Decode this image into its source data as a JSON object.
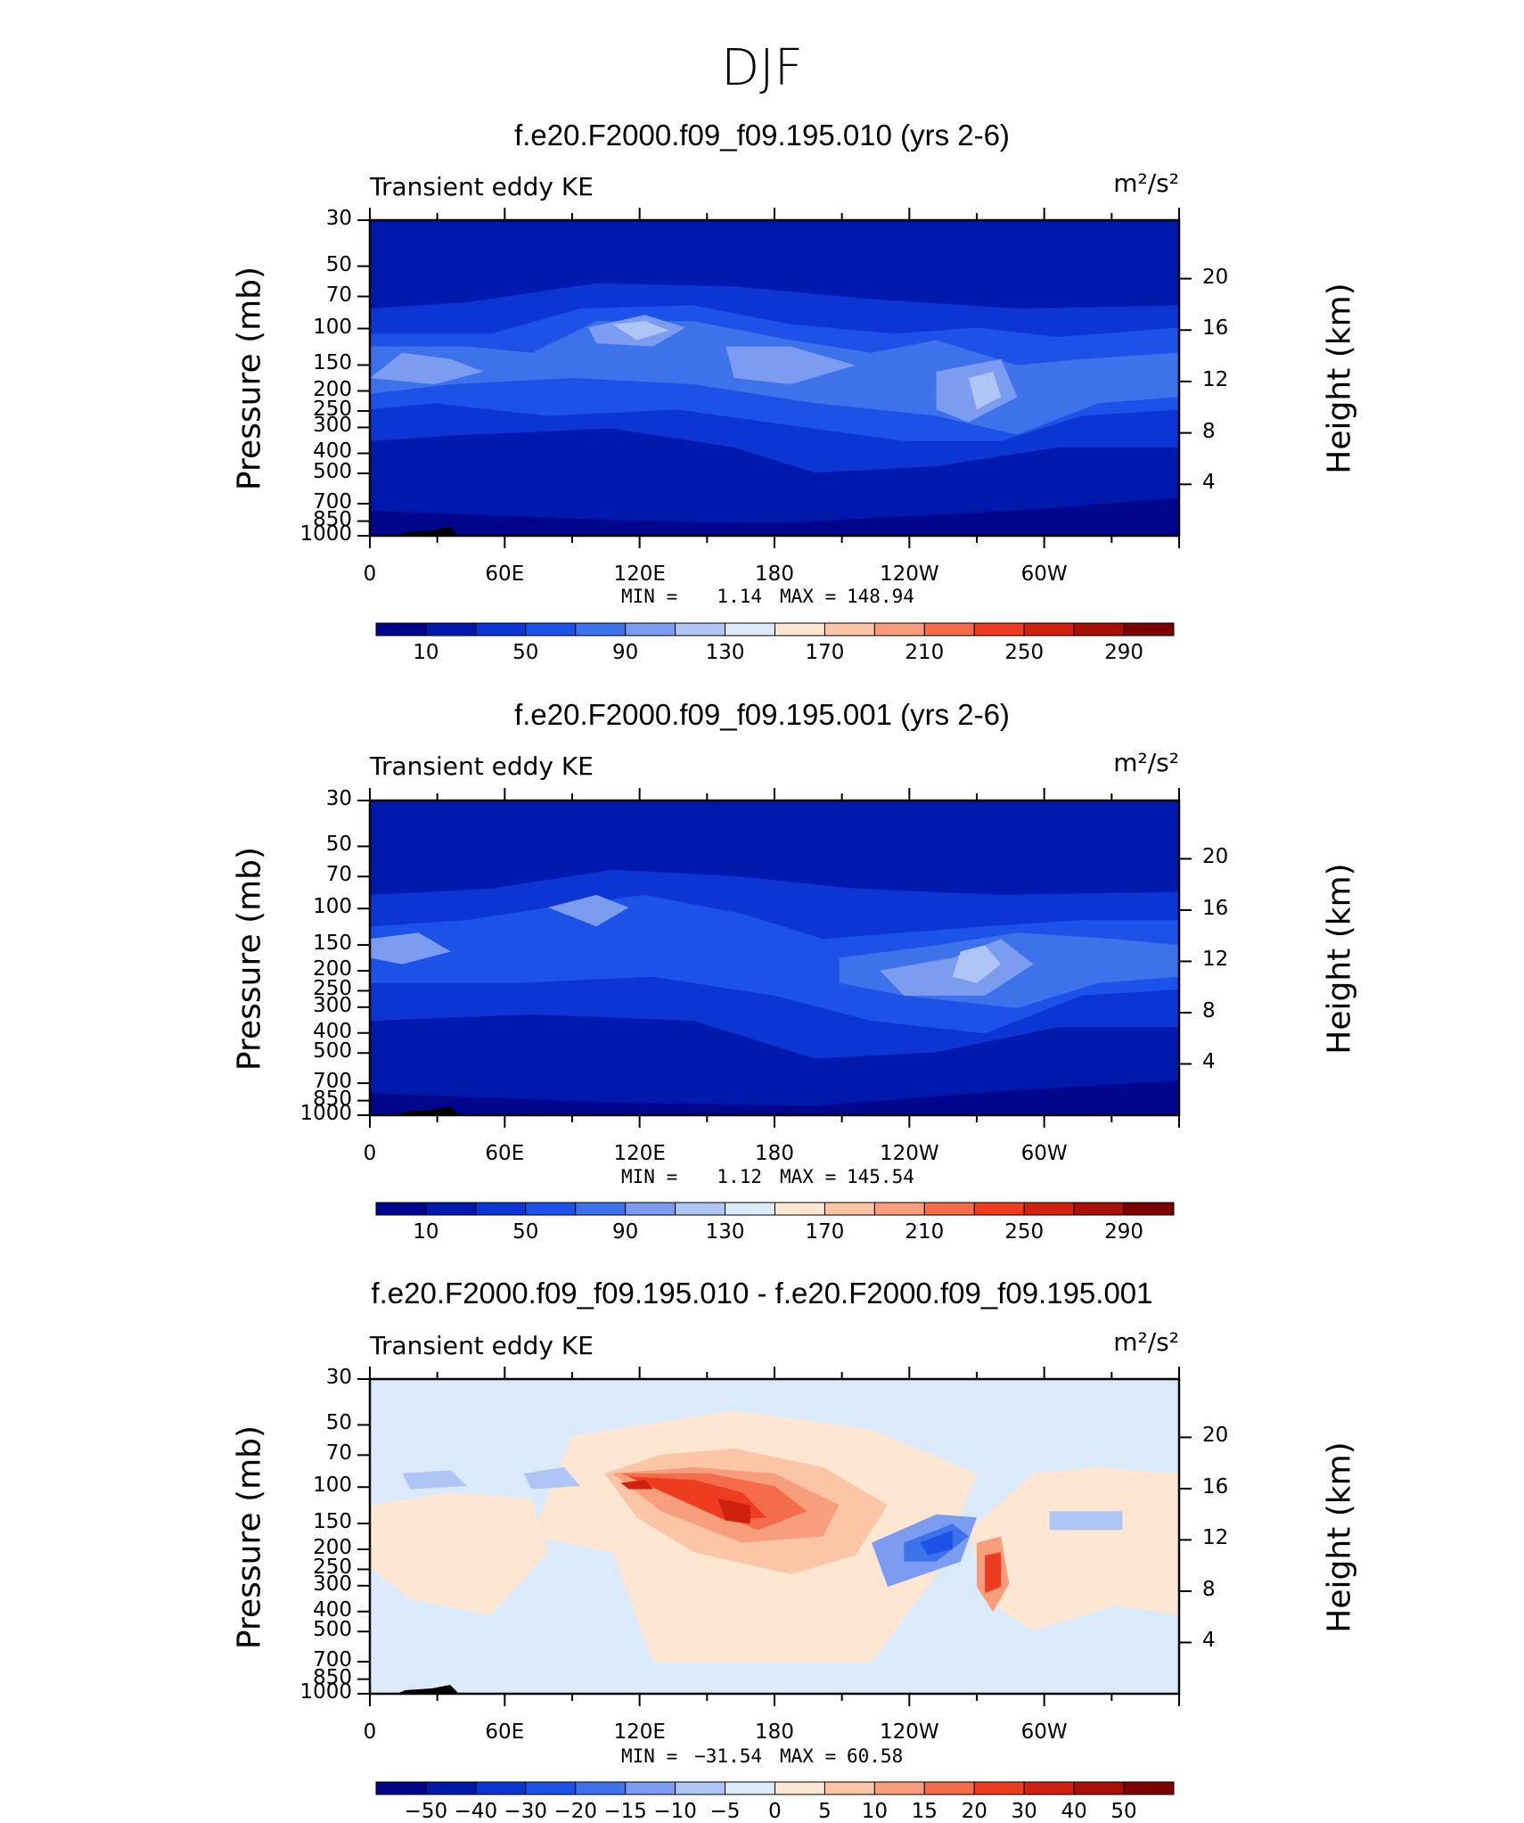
{
  "title": "DJF",
  "chart_data": [
    {
      "type": "heatmap",
      "title": "f.e20.F2000.f09_f09.195.010 (yrs 2-6)",
      "left_string": "Transient eddy KE",
      "units_string": "m²/s²",
      "ylabel": "Pressure (mb)",
      "ylabel_right": "Height (km)",
      "x_ticks": [
        "0",
        "60E",
        "120E",
        "180",
        "120W",
        "60W"
      ],
      "y_ticks": [
        "30",
        "50",
        "70",
        "100",
        "150",
        "200",
        "250",
        "300",
        "400",
        "500",
        "700",
        "850",
        "1000"
      ],
      "y_ticks_right": [
        "20",
        "16",
        "12",
        "8",
        "4"
      ],
      "stats": {
        "min_label": "MIN =",
        "min_value": "1.14",
        "max_label": "MAX =",
        "max_value": "148.94"
      },
      "contour_levels": [
        "10",
        "50",
        "90",
        "130",
        "170",
        "210",
        "250",
        "290"
      ],
      "palette": [
        "#00068c",
        "#0019ad",
        "#0c36d4",
        "#1d52e8",
        "#3d72ea",
        "#7b9cf0",
        "#aec5f5",
        "#daeafb",
        "#fde6d2",
        "#fcc6a6",
        "#f99e7c",
        "#f46c4a",
        "#ee3c20",
        "#d0210f",
        "#a81006",
        "#7c0000"
      ]
    },
    {
      "type": "heatmap",
      "title": "f.e20.F2000.f09_f09.195.001 (yrs 2-6)",
      "left_string": "Transient eddy KE",
      "units_string": "m²/s²",
      "ylabel": "Pressure (mb)",
      "ylabel_right": "Height (km)",
      "x_ticks": [
        "0",
        "60E",
        "120E",
        "180",
        "120W",
        "60W"
      ],
      "y_ticks": [
        "30",
        "50",
        "70",
        "100",
        "150",
        "200",
        "250",
        "300",
        "400",
        "500",
        "700",
        "850",
        "1000"
      ],
      "y_ticks_right": [
        "20",
        "16",
        "12",
        "8",
        "4"
      ],
      "stats": {
        "min_label": "MIN =",
        "min_value": "1.12",
        "max_label": "MAX =",
        "max_value": "145.54"
      },
      "contour_levels": [
        "10",
        "50",
        "90",
        "130",
        "170",
        "210",
        "250",
        "290"
      ],
      "palette": [
        "#00068c",
        "#0019ad",
        "#0c36d4",
        "#1d52e8",
        "#3d72ea",
        "#7b9cf0",
        "#aec5f5",
        "#daeafb",
        "#fde6d2",
        "#fcc6a6",
        "#f99e7c",
        "#f46c4a",
        "#ee3c20",
        "#d0210f",
        "#a81006",
        "#7c0000"
      ]
    },
    {
      "type": "heatmap",
      "title": "f.e20.F2000.f09_f09.195.010 - f.e20.F2000.f09_f09.195.001",
      "left_string": "Transient eddy KE",
      "units_string": "m²/s²",
      "ylabel": "Pressure (mb)",
      "ylabel_right": "Height (km)",
      "x_ticks": [
        "0",
        "60E",
        "120E",
        "180",
        "120W",
        "60W"
      ],
      "y_ticks": [
        "30",
        "50",
        "70",
        "100",
        "150",
        "200",
        "250",
        "300",
        "400",
        "500",
        "700",
        "850",
        "1000"
      ],
      "y_ticks_right": [
        "20",
        "16",
        "12",
        "8",
        "4"
      ],
      "stats": {
        "min_label": "MIN =",
        "min_value": "−31.54",
        "max_label": "MAX =",
        "max_value": "60.58"
      },
      "contour_levels": [
        "−50",
        "−40",
        "−30",
        "−20",
        "−15",
        "−10",
        "−5",
        "0",
        "5",
        "10",
        "15",
        "20",
        "30",
        "40",
        "50"
      ],
      "palette": [
        "#00068c",
        "#0019ad",
        "#0c36d4",
        "#1d52e8",
        "#3d72ea",
        "#7b9cf0",
        "#aec5f5",
        "#daeafb",
        "#fde6d2",
        "#fcc6a6",
        "#f99e7c",
        "#f46c4a",
        "#ee3c20",
        "#d0210f",
        "#a81006",
        "#7c0000"
      ]
    }
  ]
}
